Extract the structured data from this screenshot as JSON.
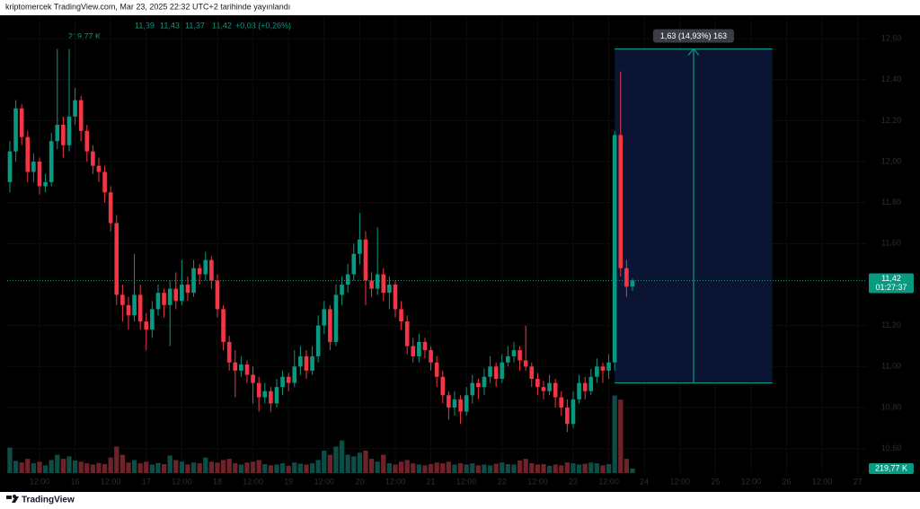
{
  "header": {
    "publisher": "kriptomercek TradingView.com, Mar 23, 2025 22:32 UTC+2 tarihinde yayınlandı"
  },
  "legend": {
    "open": "11,39",
    "high": "11,43",
    "low": "11,37",
    "close": "11,42",
    "change": "+0,03 (+0,26%)",
    "volume": "219,77 K"
  },
  "footer": {
    "brand": "TradingView"
  },
  "chart_data": {
    "type": "candlestick",
    "up_color": "#089981",
    "down_color": "#f23645",
    "volume_up_color": "#0e4d46",
    "volume_down_color": "#6e2229",
    "grid": true,
    "xlim": [
      -0.45,
      144.55
    ],
    "ylim": [
      10.48,
      12.71
    ],
    "yticks": [
      {
        "value": 10.6,
        "label": "10,60"
      },
      {
        "value": 10.8,
        "label": "10,80"
      },
      {
        "value": 11,
        "label": "11,00"
      },
      {
        "value": 11.2,
        "label": "11,20"
      },
      {
        "value": 11.6,
        "label": "11,60"
      },
      {
        "value": 11.8,
        "label": "11,80"
      },
      {
        "value": 12,
        "label": "12,00"
      },
      {
        "value": 12.2,
        "label": "12,20"
      },
      {
        "value": 12.4,
        "label": "12,40"
      },
      {
        "value": 12.6,
        "label": "12,60"
      }
    ],
    "xticks": [
      {
        "value": 5,
        "label": "12:00"
      },
      {
        "value": 11,
        "label": "16"
      },
      {
        "value": 17,
        "label": "12:00"
      },
      {
        "value": 23,
        "label": "17"
      },
      {
        "value": 29,
        "label": "12:00"
      },
      {
        "value": 35,
        "label": "18"
      },
      {
        "value": 41,
        "label": "12:00"
      },
      {
        "value": 47,
        "label": "19"
      },
      {
        "value": 53,
        "label": "12:00"
      },
      {
        "value": 59,
        "label": "20"
      },
      {
        "value": 65,
        "label": "12:00"
      },
      {
        "value": 71,
        "label": "21"
      },
      {
        "value": 77,
        "label": "12:00"
      },
      {
        "value": 83,
        "label": "22"
      },
      {
        "value": 89,
        "label": "12:00"
      },
      {
        "value": 95,
        "label": "23"
      },
      {
        "value": 101,
        "label": "12:00"
      },
      {
        "value": 107,
        "label": "24"
      },
      {
        "value": 113,
        "label": "12:00"
      },
      {
        "value": 119,
        "label": "25"
      },
      {
        "value": 125,
        "label": "12:00"
      },
      {
        "value": 131,
        "label": "26"
      },
      {
        "value": 137,
        "label": "12:00"
      },
      {
        "value": 143,
        "label": "27"
      }
    ],
    "ohlc": [
      [
        11.9,
        12.1,
        11.85,
        12.05
      ],
      [
        12.05,
        12.3,
        12.0,
        12.26
      ],
      [
        12.26,
        12.28,
        12.08,
        12.12
      ],
      [
        12.12,
        12.15,
        11.9,
        11.95
      ],
      [
        11.95,
        12.04,
        11.9,
        12.0
      ],
      [
        12.0,
        12.02,
        11.84,
        11.88
      ],
      [
        11.88,
        11.94,
        11.85,
        11.9
      ],
      [
        11.9,
        12.14,
        11.88,
        12.1
      ],
      [
        12.1,
        12.55,
        12.06,
        12.18
      ],
      [
        12.18,
        12.22,
        12.02,
        12.08
      ],
      [
        12.08,
        12.55,
        12.05,
        12.22
      ],
      [
        12.22,
        12.36,
        12.18,
        12.3
      ],
      [
        12.3,
        12.32,
        12.1,
        12.15
      ],
      [
        12.15,
        12.18,
        12.0,
        12.05
      ],
      [
        12.05,
        12.08,
        11.94,
        11.98
      ],
      [
        11.98,
        12.02,
        11.9,
        11.95
      ],
      [
        11.95,
        11.98,
        11.8,
        11.85
      ],
      [
        11.85,
        11.88,
        11.66,
        11.7
      ],
      [
        11.7,
        11.74,
        11.3,
        11.35
      ],
      [
        11.35,
        11.4,
        11.22,
        11.3
      ],
      [
        11.3,
        11.34,
        11.18,
        11.25
      ],
      [
        11.25,
        11.55,
        11.22,
        11.35
      ],
      [
        11.35,
        11.4,
        11.18,
        11.22
      ],
      [
        11.22,
        11.26,
        11.08,
        11.18
      ],
      [
        11.18,
        11.32,
        11.14,
        11.28
      ],
      [
        11.28,
        11.4,
        11.25,
        11.36
      ],
      [
        11.36,
        11.38,
        11.24,
        11.3
      ],
      [
        11.3,
        11.42,
        11.1,
        11.38
      ],
      [
        11.38,
        11.46,
        11.28,
        11.32
      ],
      [
        11.32,
        11.52,
        11.3,
        11.4
      ],
      [
        11.4,
        11.44,
        11.32,
        11.36
      ],
      [
        11.36,
        11.52,
        11.34,
        11.48
      ],
      [
        11.48,
        11.5,
        11.4,
        11.45
      ],
      [
        11.45,
        11.56,
        11.42,
        11.52
      ],
      [
        11.52,
        11.54,
        11.38,
        11.42
      ],
      [
        11.42,
        11.45,
        11.24,
        11.28
      ],
      [
        11.28,
        11.3,
        11.08,
        11.12
      ],
      [
        11.12,
        11.15,
        10.98,
        11.02
      ],
      [
        11.02,
        11.08,
        10.85,
        10.98
      ],
      [
        10.98,
        11.05,
        10.95,
        11.01
      ],
      [
        11.01,
        11.03,
        10.92,
        10.96
      ],
      [
        10.96,
        11.0,
        10.82,
        10.92
      ],
      [
        10.92,
        10.95,
        10.78,
        10.85
      ],
      [
        10.85,
        10.92,
        10.82,
        10.88
      ],
      [
        10.88,
        10.9,
        10.78,
        10.82
      ],
      [
        10.82,
        10.94,
        10.8,
        10.9
      ],
      [
        10.9,
        10.98,
        10.86,
        10.95
      ],
      [
        10.95,
        10.97,
        10.88,
        10.92
      ],
      [
        10.92,
        11.08,
        10.9,
        11.0
      ],
      [
        11.0,
        11.1,
        10.96,
        11.05
      ],
      [
        11.05,
        11.08,
        10.94,
        10.98
      ],
      [
        10.98,
        11.1,
        10.96,
        11.05
      ],
      [
        11.05,
        11.25,
        11.02,
        11.2
      ],
      [
        11.2,
        11.32,
        11.16,
        11.28
      ],
      [
        11.28,
        11.3,
        11.08,
        11.12
      ],
      [
        11.12,
        11.4,
        11.1,
        11.35
      ],
      [
        11.35,
        11.44,
        11.3,
        11.4
      ],
      [
        11.4,
        11.5,
        11.36,
        11.45
      ],
      [
        11.45,
        11.6,
        11.42,
        11.55
      ],
      [
        11.55,
        11.75,
        11.5,
        11.62
      ],
      [
        11.62,
        11.66,
        11.3,
        11.42
      ],
      [
        11.42,
        11.46,
        11.34,
        11.38
      ],
      [
        11.38,
        11.68,
        11.35,
        11.45
      ],
      [
        11.45,
        11.48,
        11.32,
        11.36
      ],
      [
        11.36,
        11.44,
        11.28,
        11.4
      ],
      [
        11.4,
        11.42,
        11.24,
        11.28
      ],
      [
        11.28,
        11.32,
        11.18,
        11.22
      ],
      [
        11.22,
        11.25,
        11.06,
        11.1
      ],
      [
        11.1,
        11.14,
        11.02,
        11.05
      ],
      [
        11.05,
        11.16,
        11.02,
        11.12
      ],
      [
        11.12,
        11.14,
        11.04,
        11.08
      ],
      [
        11.08,
        11.1,
        10.98,
        11.02
      ],
      [
        11.02,
        11.05,
        10.9,
        10.95
      ],
      [
        10.95,
        10.98,
        10.82,
        10.86
      ],
      [
        10.86,
        10.88,
        10.74,
        10.8
      ],
      [
        10.8,
        10.88,
        10.76,
        10.84
      ],
      [
        10.84,
        10.86,
        10.72,
        10.78
      ],
      [
        10.78,
        10.9,
        10.76,
        10.86
      ],
      [
        10.86,
        10.96,
        10.82,
        10.92
      ],
      [
        10.92,
        10.94,
        10.84,
        10.9
      ],
      [
        10.9,
        10.99,
        10.86,
        10.95
      ],
      [
        10.95,
        11.05,
        10.92,
        11.0
      ],
      [
        11.0,
        11.02,
        10.9,
        10.94
      ],
      [
        10.94,
        11.06,
        10.92,
        11.02
      ],
      [
        11.02,
        11.1,
        11.0,
        11.05
      ],
      [
        11.05,
        11.12,
        11.02,
        11.08
      ],
      [
        11.08,
        11.1,
        10.98,
        11.03
      ],
      [
        11.03,
        11.2,
        10.98,
        11.0
      ],
      [
        11.0,
        11.02,
        10.9,
        10.94
      ],
      [
        10.94,
        10.97,
        10.86,
        10.9
      ],
      [
        10.9,
        10.93,
        10.84,
        10.88
      ],
      [
        10.88,
        10.96,
        10.86,
        10.92
      ],
      [
        10.92,
        10.94,
        10.8,
        10.85
      ],
      [
        10.85,
        10.88,
        10.76,
        10.8
      ],
      [
        10.8,
        10.84,
        10.68,
        10.72
      ],
      [
        10.72,
        10.88,
        10.7,
        10.84
      ],
      [
        10.84,
        10.96,
        10.82,
        10.92
      ],
      [
        10.92,
        10.95,
        10.84,
        10.88
      ],
      [
        10.88,
        10.99,
        10.86,
        10.95
      ],
      [
        10.95,
        11.04,
        10.92,
        11.0
      ],
      [
        11.0,
        11.02,
        10.92,
        10.98
      ],
      [
        10.98,
        11.06,
        10.94,
        11.02
      ],
      [
        11.02,
        12.15,
        10.98,
        12.13
      ],
      [
        12.13,
        12.44,
        11.44,
        11.48
      ],
      [
        11.48,
        11.52,
        11.34,
        11.39
      ],
      [
        11.39,
        11.43,
        11.37,
        11.42
      ]
    ],
    "vlim": [
      0,
      4400
    ],
    "volume": [
      1250,
      600,
      520,
      700,
      480,
      560,
      380,
      640,
      900,
      700,
      820,
      620,
      560,
      480,
      420,
      500,
      440,
      760,
      1300,
      900,
      520,
      640,
      480,
      560,
      420,
      500,
      440,
      860,
      640,
      560,
      420,
      520,
      480,
      760,
      560,
      520,
      640,
      700,
      480,
      420,
      520,
      560,
      640,
      440,
      380,
      420,
      480,
      360,
      520,
      460,
      420,
      480,
      640,
      1100,
      900,
      1300,
      1600,
      900,
      820,
      1000,
      1100,
      700,
      560,
      900,
      480,
      420,
      560,
      640,
      480,
      420,
      380,
      440,
      520,
      480,
      560,
      420,
      480,
      420,
      480,
      380,
      420,
      380,
      460,
      520,
      440,
      420,
      620,
      700,
      480,
      420,
      440,
      360,
      420,
      380,
      520,
      480,
      420,
      460,
      520,
      480,
      380,
      440,
      3800,
      3600,
      700,
      219.77
    ],
    "last_price": 11.42,
    "last_price_label": "11,42",
    "countdown": "01:27:37",
    "measure": {
      "start": 102,
      "end": 128.6,
      "from": 10.92,
      "to": 12.55,
      "label": "1,63 (14,93%) 163"
    }
  }
}
